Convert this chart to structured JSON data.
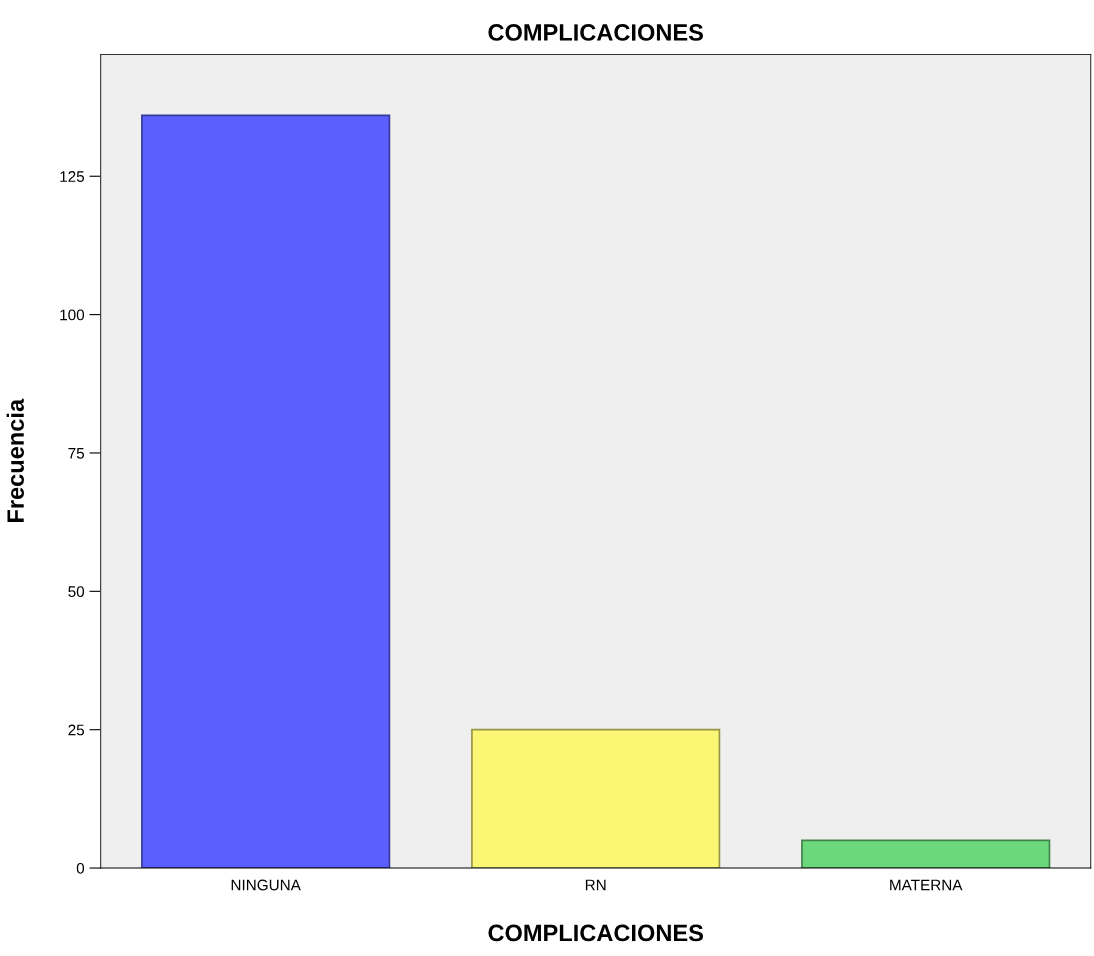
{
  "chart_data": {
    "type": "bar",
    "title": "COMPLICACIONES",
    "xlabel": "COMPLICACIONES",
    "ylabel": "Frecuencia",
    "categories": [
      "NINGUNA",
      "RN",
      "MATERNA"
    ],
    "values": [
      136,
      25,
      5
    ],
    "colors": [
      "#5b5ffd",
      "#fbf674",
      "#6cd87c"
    ],
    "ylim": [
      0,
      147
    ],
    "yticks": [
      0,
      25,
      50,
      75,
      100,
      125
    ],
    "grid": false,
    "legend": false
  }
}
